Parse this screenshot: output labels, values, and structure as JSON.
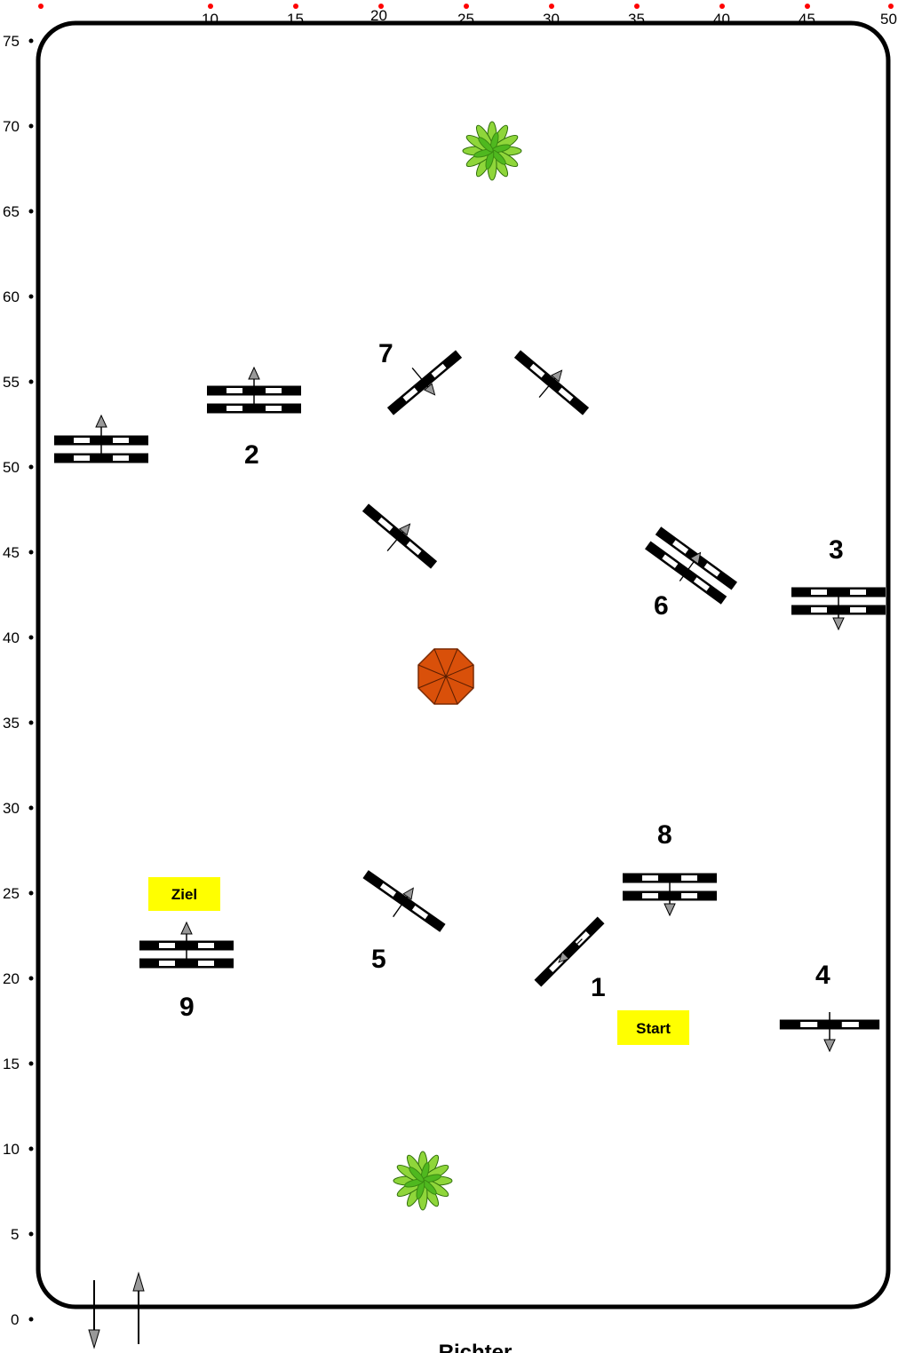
{
  "axis": {
    "x_ticks": [
      "10",
      "15",
      "20",
      "25",
      "30",
      "35",
      "40",
      "45",
      "50"
    ],
    "y_ticks": [
      "75",
      "70",
      "65",
      "60",
      "55",
      "50",
      "45",
      "40",
      "35",
      "30",
      "25",
      "20",
      "15",
      "10",
      "5",
      "0"
    ]
  },
  "obstacles": [
    {
      "number": "1"
    },
    {
      "number": "2"
    },
    {
      "number": "3"
    },
    {
      "number": "4"
    },
    {
      "number": "5"
    },
    {
      "number": "6"
    },
    {
      "number": "7"
    },
    {
      "number": "8"
    },
    {
      "number": "9"
    }
  ],
  "signs": {
    "start": "Start",
    "finish": "Ziel"
  },
  "judge": "Richter",
  "colors": {
    "sign_bg": "#ffff00",
    "marker": "#ff0000",
    "plant": "#66cc22",
    "umbrella": "#d9500a"
  }
}
